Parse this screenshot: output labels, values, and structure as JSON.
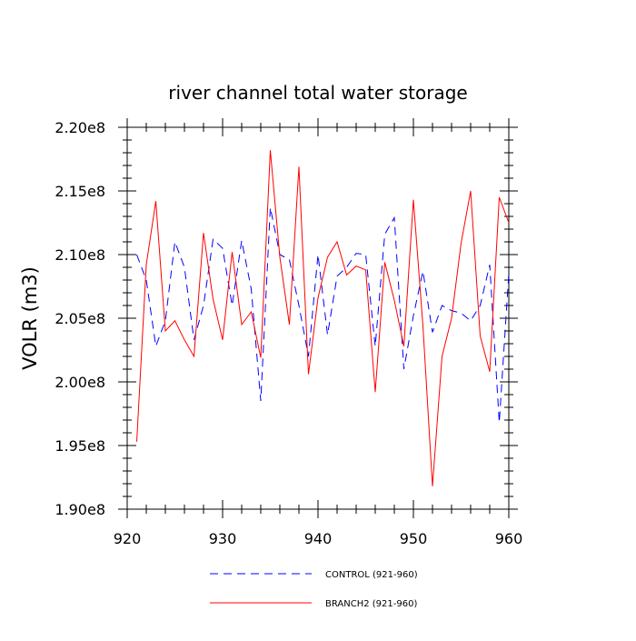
{
  "chart_data": {
    "type": "line",
    "title": "river channel total water storage",
    "xlabel": "",
    "ylabel": "VOLR  (m3)",
    "xlim": [
      920,
      960
    ],
    "ylim": [
      190000000,
      220000000
    ],
    "x_ticks": [
      920,
      930,
      940,
      950,
      960
    ],
    "x_tick_labels": [
      "920",
      "930",
      "940",
      "950",
      "960"
    ],
    "y_ticks": [
      190000000,
      195000000,
      200000000,
      205000000,
      210000000,
      215000000,
      220000000
    ],
    "y_tick_labels": [
      "1.90e8",
      "1.95e8",
      "2.00e8",
      "2.05e8",
      "2.10e8",
      "2.15e8",
      "2.20e8"
    ],
    "grid": false,
    "legend_position": "bottom",
    "x": [
      921,
      922,
      923,
      924,
      925,
      926,
      927,
      928,
      929,
      930,
      931,
      932,
      933,
      934,
      935,
      936,
      937,
      938,
      939,
      940,
      941,
      942,
      943,
      944,
      945,
      946,
      947,
      948,
      949,
      950,
      951,
      952,
      953,
      954,
      955,
      956,
      957,
      958,
      959,
      960
    ],
    "series": [
      {
        "name": "CONTROL (921-960)",
        "color": "#0000ff",
        "dash": "dashed",
        "values": [
          210000000,
          208000000,
          202800000,
          204800000,
          211000000,
          209000000,
          203300000,
          206000000,
          211200000,
          210500000,
          206000000,
          211100000,
          207300000,
          198500000,
          213700000,
          210000000,
          209600000,
          206000000,
          202000000,
          210000000,
          203700000,
          208300000,
          209000000,
          210100000,
          210000000,
          202800000,
          211600000,
          212900000,
          201000000,
          205200000,
          208700000,
          203900000,
          206000000,
          205600000,
          205400000,
          204800000,
          206000000,
          209200000,
          196800000,
          208500000
        ]
      },
      {
        "name": "BRANCH2 (921-960)",
        "color": "#ff0000",
        "dash": "solid",
        "values": [
          195300000,
          209200000,
          214200000,
          204000000,
          204800000,
          203300000,
          202000000,
          211700000,
          206500000,
          203300000,
          210200000,
          204500000,
          205500000,
          201900000,
          218200000,
          209800000,
          204500000,
          216900000,
          200600000,
          206600000,
          209800000,
          211000000,
          208400000,
          209100000,
          208800000,
          199200000,
          209400000,
          206400000,
          202800000,
          214300000,
          204400000,
          191800000,
          202000000,
          205000000,
          210900000,
          215000000,
          203600000,
          200800000,
          214500000,
          212500000
        ]
      }
    ]
  }
}
